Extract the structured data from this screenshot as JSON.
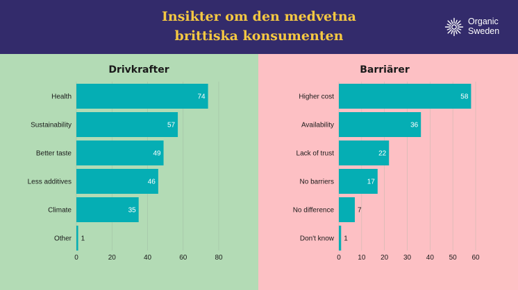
{
  "header": {
    "title_line1": "Insikter om den medvetna",
    "title_line2": "brittiska konsumenten",
    "logo_line1": "Organic",
    "logo_line2": "Sweden",
    "logo_icon": "sunburst-logo-icon"
  },
  "colors": {
    "header_bg": "#332b6b",
    "title": "#f5c842",
    "bar": "#05aeb4",
    "left_bg": "#b3dbb5",
    "right_bg": "#fdc0c4"
  },
  "chart_data": [
    {
      "type": "bar",
      "orientation": "horizontal",
      "title": "Drivkrafter",
      "categories": [
        "Health",
        "Sustainability",
        "Better taste",
        "Less additives",
        "Climate",
        "Other"
      ],
      "values": [
        74,
        57,
        49,
        46,
        35,
        1
      ],
      "xlim": [
        0,
        80
      ],
      "xticks": [
        0,
        20,
        40,
        60,
        80
      ],
      "grid": true,
      "legend": "none"
    },
    {
      "type": "bar",
      "orientation": "horizontal",
      "title": "Barriärer",
      "categories": [
        "Higher cost",
        "Availability",
        "Lack of trust",
        "No barriers",
        "No difference",
        "Don't know"
      ],
      "values": [
        58,
        36,
        22,
        17,
        7,
        1
      ],
      "xlim": [
        0,
        60
      ],
      "xticks": [
        0,
        10,
        20,
        30,
        40,
        50,
        60
      ],
      "grid": true,
      "legend": "none"
    }
  ]
}
